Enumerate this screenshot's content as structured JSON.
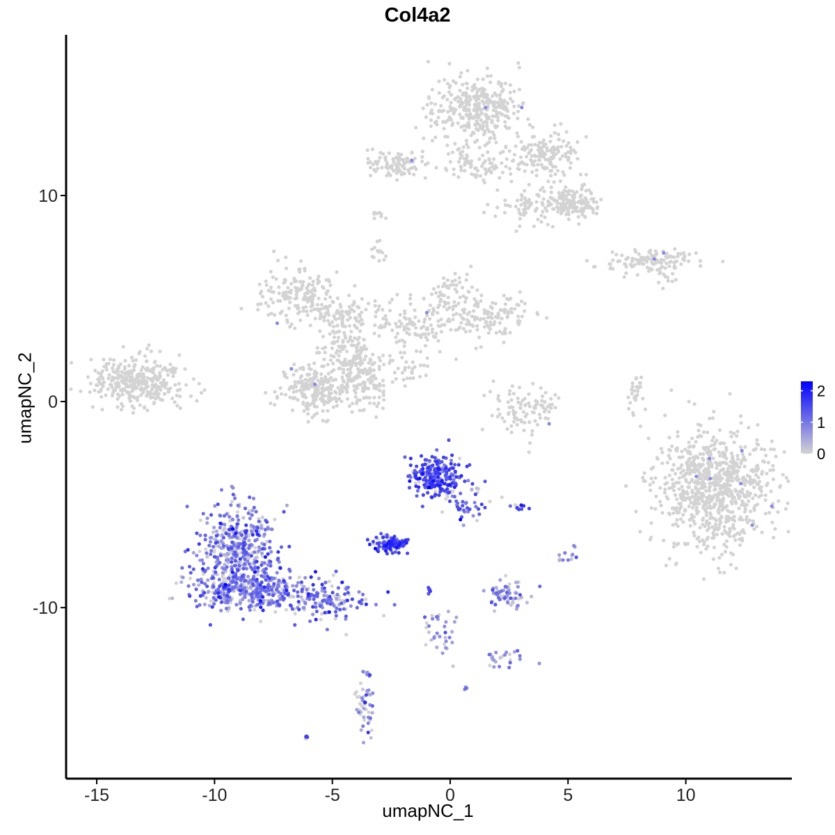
{
  "chart_data": {
    "type": "scatter",
    "title": "Col4a2",
    "xlabel": "umapNC_1",
    "ylabel": "umapNC_2",
    "xlim": [
      -16.3,
      14.5
    ],
    "ylim": [
      -18.3,
      17.8
    ],
    "x_ticks": [
      -15,
      -10,
      -5,
      0,
      5,
      10
    ],
    "x_tick_labels": [
      "-15",
      "-10",
      "-5",
      "0",
      "5",
      "10"
    ],
    "y_ticks": [
      -10,
      0,
      10
    ],
    "y_tick_labels": [
      "-10",
      "0",
      "10"
    ],
    "grid": false,
    "legend": {
      "placement": "right",
      "type": "colorbar",
      "min": 0,
      "max": 2.3,
      "ticks": [
        0,
        1,
        2
      ],
      "tick_labels": [
        "0",
        "1",
        "2"
      ],
      "color_low": "#d3d3d3",
      "color_high": "#0000ff"
    },
    "clusters": [
      {
        "id": "c1",
        "cx": -13.2,
        "cy": 1.0,
        "sx": 1.0,
        "sy": 0.6,
        "n": 330,
        "expr_mean": 0.0,
        "expr_sd": 0.0
      },
      {
        "id": "c2a",
        "cx": -6.6,
        "cy": 5.2,
        "sx": 0.9,
        "sy": 0.6,
        "n": 150,
        "expr_mean": 0.0,
        "expr_sd": 0.0
      },
      {
        "id": "c2b",
        "cx": -4.5,
        "cy": 4.2,
        "sx": 0.9,
        "sy": 0.5,
        "n": 110,
        "expr_mean": 0.0,
        "expr_sd": 0.0
      },
      {
        "id": "c2c",
        "cx": -5.9,
        "cy": 0.6,
        "sx": 0.7,
        "sy": 0.6,
        "n": 200,
        "expr_mean": 0.0,
        "expr_sd": 0.0
      },
      {
        "id": "c2d",
        "cx": -3.8,
        "cy": 1.2,
        "sx": 0.6,
        "sy": 0.8,
        "n": 170,
        "expr_mean": 0.0,
        "expr_sd": 0.0
      },
      {
        "id": "c2e",
        "cx": -4.5,
        "cy": 2.6,
        "sx": 0.5,
        "sy": 0.7,
        "n": 90,
        "expr_mean": 0.0,
        "expr_sd": 0.0
      },
      {
        "id": "c2f",
        "cx": -1.3,
        "cy": 3.6,
        "sx": 1.1,
        "sy": 0.6,
        "n": 110,
        "expr_mean": 0.0,
        "expr_sd": 0.0
      },
      {
        "id": "c2g",
        "cx": 0.0,
        "cy": 5.2,
        "sx": 0.5,
        "sy": 0.6,
        "n": 60,
        "expr_mean": 0.0,
        "expr_sd": 0.0
      },
      {
        "id": "c2h",
        "cx": 1.8,
        "cy": 4.1,
        "sx": 0.8,
        "sy": 0.5,
        "n": 110,
        "expr_mean": 0.0,
        "expr_sd": 0.0
      },
      {
        "id": "c2i",
        "cx": -1.9,
        "cy": 1.6,
        "sx": 0.5,
        "sy": 0.4,
        "n": 30,
        "expr_mean": 0.0,
        "expr_sd": 0.0
      },
      {
        "id": "c2j",
        "cx": -3.0,
        "cy": 7.2,
        "sx": 0.15,
        "sy": 0.3,
        "n": 15,
        "expr_mean": 0.0,
        "expr_sd": 0.0
      },
      {
        "id": "c2k",
        "cx": -3.1,
        "cy": 9.0,
        "sx": 0.15,
        "sy": 0.15,
        "n": 8,
        "expr_mean": 0.0,
        "expr_sd": 0.0
      },
      {
        "id": "c3a",
        "cx": 1.1,
        "cy": 14.2,
        "sx": 1.0,
        "sy": 0.8,
        "n": 360,
        "expr_mean": 0.0,
        "expr_sd": 0.0
      },
      {
        "id": "c3b",
        "cx": -2.3,
        "cy": 11.5,
        "sx": 0.7,
        "sy": 0.35,
        "n": 90,
        "expr_mean": 0.0,
        "expr_sd": 0.0
      },
      {
        "id": "c3c",
        "cx": 1.0,
        "cy": 11.5,
        "sx": 1.0,
        "sy": 0.4,
        "n": 90,
        "expr_mean": 0.0,
        "expr_sd": 0.0
      },
      {
        "id": "c3d",
        "cx": 4.1,
        "cy": 11.9,
        "sx": 0.8,
        "sy": 0.5,
        "n": 140,
        "expr_mean": 0.0,
        "expr_sd": 0.0
      },
      {
        "id": "c3e",
        "cx": 5.2,
        "cy": 9.6,
        "sx": 0.5,
        "sy": 0.4,
        "n": 140,
        "expr_mean": 0.0,
        "expr_sd": 0.0
      },
      {
        "id": "c3f",
        "cx": 3.3,
        "cy": 9.6,
        "sx": 0.6,
        "sy": 0.5,
        "n": 70,
        "expr_mean": 0.0,
        "expr_sd": 0.0
      },
      {
        "id": "c4",
        "cx": 8.6,
        "cy": 6.8,
        "sx": 1.0,
        "sy": 0.25,
        "n": 120,
        "expr_mean": 0.0,
        "expr_sd": 0.0
      },
      {
        "id": "c4b",
        "cx": 9.2,
        "cy": 5.9,
        "sx": 0.25,
        "sy": 0.2,
        "n": 10,
        "expr_mean": 0.0,
        "expr_sd": 0.0
      },
      {
        "id": "c5",
        "cx": 3.2,
        "cy": -0.4,
        "sx": 0.7,
        "sy": 0.6,
        "n": 100,
        "expr_mean": 0.0,
        "expr_sd": 0.0
      },
      {
        "id": "c6",
        "cx": 7.9,
        "cy": 0.3,
        "sx": 0.15,
        "sy": 0.6,
        "n": 30,
        "expr_mean": 0.0,
        "expr_sd": 0.0
      },
      {
        "id": "c7",
        "cx": 11.2,
        "cy": -4.2,
        "sx": 1.2,
        "sy": 1.4,
        "n": 800,
        "expr_mean": 0.0,
        "expr_sd": 0.0
      },
      {
        "id": "c8a",
        "cx": -9.0,
        "cy": -6.9,
        "sx": 0.8,
        "sy": 1.0,
        "n": 380,
        "expr_mean": 0.9,
        "expr_sd": 0.45
      },
      {
        "id": "c8b",
        "cx": -8.7,
        "cy": -9.0,
        "sx": 1.1,
        "sy": 0.6,
        "n": 370,
        "expr_mean": 1.0,
        "expr_sd": 0.45
      },
      {
        "id": "c8c",
        "cx": -5.4,
        "cy": -9.6,
        "sx": 1.0,
        "sy": 0.5,
        "n": 160,
        "expr_mean": 1.1,
        "expr_sd": 0.4
      },
      {
        "id": "c9",
        "cx": -0.6,
        "cy": -3.6,
        "sx": 0.55,
        "sy": 0.5,
        "n": 220,
        "expr_mean": 1.5,
        "expr_sd": 0.35
      },
      {
        "id": "c9b",
        "cx": 0.6,
        "cy": -4.9,
        "sx": 0.5,
        "sy": 0.5,
        "n": 50,
        "expr_mean": 1.2,
        "expr_sd": 0.35
      },
      {
        "id": "c10",
        "cx": -2.5,
        "cy": -6.9,
        "sx": 0.35,
        "sy": 0.2,
        "n": 100,
        "expr_mean": 1.6,
        "expr_sd": 0.3
      },
      {
        "id": "c11",
        "cx": 2.4,
        "cy": -9.4,
        "sx": 0.4,
        "sy": 0.35,
        "n": 70,
        "expr_mean": 0.8,
        "expr_sd": 0.4
      },
      {
        "id": "c12",
        "cx": 2.2,
        "cy": -12.5,
        "sx": 0.5,
        "sy": 0.25,
        "n": 25,
        "expr_mean": 0.7,
        "expr_sd": 0.3
      },
      {
        "id": "c13",
        "cx": -3.6,
        "cy": -14.8,
        "sx": 0.2,
        "sy": 0.8,
        "n": 50,
        "expr_mean": 0.7,
        "expr_sd": 0.45
      },
      {
        "id": "c14",
        "cx": -6.1,
        "cy": -16.3,
        "sx": 0.06,
        "sy": 0.04,
        "n": 6,
        "expr_mean": 1.5,
        "expr_sd": 0.2
      },
      {
        "id": "c15",
        "cx": -0.4,
        "cy": -11.2,
        "sx": 0.4,
        "sy": 0.7,
        "n": 35,
        "expr_mean": 0.6,
        "expr_sd": 0.35
      },
      {
        "id": "c16",
        "cx": 5.0,
        "cy": -7.4,
        "sx": 0.2,
        "sy": 0.25,
        "n": 12,
        "expr_mean": 0.6,
        "expr_sd": 0.3
      },
      {
        "id": "c17",
        "cx": 2.8,
        "cy": -5.1,
        "sx": 0.25,
        "sy": 0.08,
        "n": 10,
        "expr_mean": 1.6,
        "expr_sd": 0.2
      },
      {
        "id": "c18",
        "cx": 0.6,
        "cy": -13.9,
        "sx": 0.05,
        "sy": 0.05,
        "n": 4,
        "expr_mean": 1.0,
        "expr_sd": 0.2
      },
      {
        "id": "c19",
        "cx": -0.9,
        "cy": -9.2,
        "sx": 0.1,
        "sy": 0.1,
        "n": 6,
        "expr_mean": 1.5,
        "expr_sd": 0.2
      }
    ]
  }
}
